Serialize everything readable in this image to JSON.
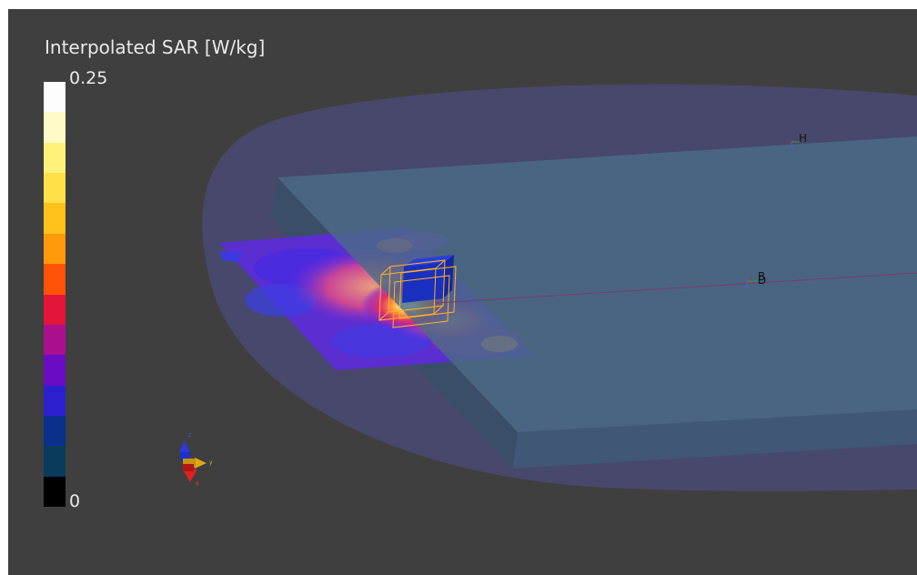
{
  "legend": {
    "title": "Interpolated SAR [W/kg]",
    "max_label": "0.25",
    "min_label": "0",
    "colors": [
      "#fdfdfd",
      "#fffac8",
      "#fff17a",
      "#ffe048",
      "#ffc21b",
      "#ff9a0a",
      "#ff5208",
      "#e5153a",
      "#ab0f8e",
      "#6a0cc4",
      "#2c1fcf",
      "#0a2f8c",
      "#0a3a5c",
      "#000000"
    ]
  },
  "probes": {
    "h_label": "H",
    "b_label": "B",
    "d_label": "D"
  },
  "axes": {
    "x_label": "x",
    "y_label": "y",
    "z_label": "z"
  },
  "colors": {
    "background": "#3f3f3f",
    "phantom_ellipse": "#4a4a78",
    "phantom_slab": "#4a6b88",
    "grid_low": "#5a2ed0",
    "grid_high": "#ffe9a0"
  }
}
